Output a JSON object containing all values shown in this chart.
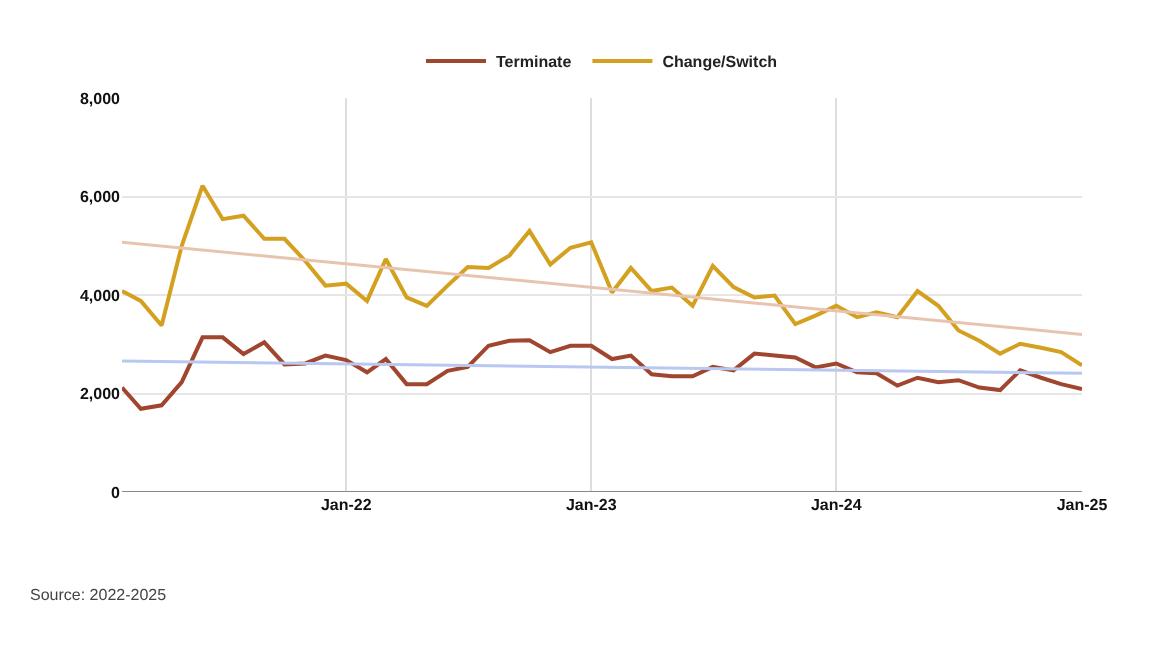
{
  "chart_data": {
    "type": "line",
    "x": [
      "2021-02",
      "2021-03",
      "2021-04",
      "2021-05",
      "2021-06",
      "2021-07",
      "2021-08",
      "2021-09",
      "2021-10",
      "2021-11",
      "2021-12",
      "2022-01",
      "2022-02",
      "2022-03",
      "2022-04",
      "2022-05",
      "2022-06",
      "2022-07",
      "2022-08",
      "2022-09",
      "2022-10",
      "2022-11",
      "2022-12",
      "2023-01",
      "2023-02",
      "2023-03",
      "2023-04",
      "2023-05",
      "2023-06",
      "2023-07",
      "2023-08",
      "2023-09",
      "2023-10",
      "2023-11",
      "2023-12",
      "2024-01",
      "2024-02",
      "2024-03",
      "2024-04",
      "2024-05",
      "2024-06",
      "2024-07",
      "2024-08",
      "2024-09",
      "2024-10",
      "2024-11",
      "2024-12",
      "2025-01"
    ],
    "series": [
      {
        "name": "Terminate",
        "color": "#a0452e",
        "values": [
          2120,
          1690,
          1760,
          2230,
          3140,
          3140,
          2800,
          3040,
          2590,
          2610,
          2770,
          2680,
          2430,
          2700,
          2190,
          2190,
          2460,
          2540,
          2970,
          3070,
          3080,
          2840,
          2970,
          2970,
          2700,
          2770,
          2390,
          2350,
          2350,
          2540,
          2470,
          2810,
          2770,
          2730,
          2530,
          2610,
          2430,
          2410,
          2160,
          2320,
          2230,
          2270,
          2120,
          2070,
          2470,
          2320,
          2190,
          2090
        ]
      },
      {
        "name": "Change/Switch",
        "color": "#d4a020",
        "values": [
          4080,
          3880,
          3380,
          5000,
          6220,
          5540,
          5610,
          5140,
          5140,
          4690,
          4190,
          4230,
          3880,
          4730,
          3950,
          3780,
          4190,
          4570,
          4550,
          4800,
          5300,
          4620,
          4960,
          5070,
          4050,
          4550,
          4080,
          4150,
          3780,
          4590,
          4160,
          3950,
          3990,
          3410,
          3580,
          3780,
          3550,
          3650,
          3550,
          4080,
          3780,
          3280,
          3070,
          2810,
          3010,
          2930,
          2840,
          2570
        ]
      },
      {
        "type": "line",
        "color": "#b8c8f0",
        "x": [
          "2021-02",
          "2025-01"
        ],
        "values": [
          2660,
          2410
        ]
      },
      {
        "type": "line",
        "color": "#e8c4b0",
        "x": [
          "2021-02",
          "2025-01"
        ],
        "values": [
          5070,
          3200
        ]
      }
    ],
    "xlim": [
      "2021-02",
      "2025-01"
    ],
    "xticks": [
      {
        "value": "2022-01",
        "label": "Jan-22"
      },
      {
        "value": "2023-01",
        "label": "Jan-23"
      },
      {
        "value": "2024-01",
        "label": "Jan-24"
      },
      {
        "value": "2025-01",
        "label": "Jan-25"
      }
    ],
    "ylim": [
      0,
      8000
    ],
    "yticks": [
      {
        "value": 0,
        "label": "0"
      },
      {
        "value": 2000,
        "label": "2,000"
      },
      {
        "value": 4000,
        "label": "4,000"
      },
      {
        "value": 6000,
        "label": "6,000"
      },
      {
        "value": 8000,
        "label": "8,000"
      }
    ],
    "grid": true,
    "legend": "top",
    "marker": "none",
    "line_style": "solid",
    "annotations": [
      "Source: 2022-2025"
    ]
  }
}
